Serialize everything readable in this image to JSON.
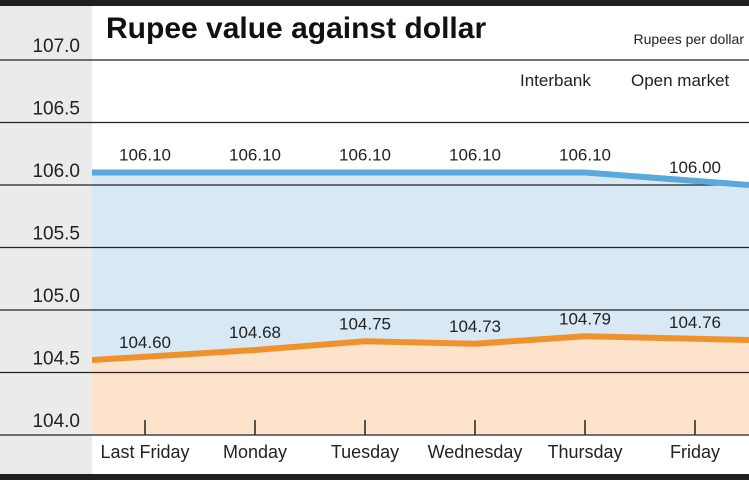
{
  "chart_data": {
    "type": "line",
    "title": "Rupee value against dollar",
    "unit_label": "Rupees per dollar",
    "categories": [
      "Last Friday",
      "Monday",
      "Tuesday",
      "Wednesday",
      "Thursday",
      "Friday"
    ],
    "series": [
      {
        "name": "Interbank",
        "values": [
          104.6,
          104.68,
          104.75,
          104.73,
          104.79,
          104.76
        ],
        "labels": [
          "104.60",
          "104.68",
          "104.75",
          "104.73",
          "104.79",
          "104.76"
        ],
        "color": "#f0922b",
        "fill": "#fde3cc"
      },
      {
        "name": "Open market",
        "values": [
          106.1,
          106.1,
          106.1,
          106.1,
          106.1,
          106.0
        ],
        "labels": [
          "106.10",
          "106.10",
          "106.10",
          "106.10",
          "106.10",
          "106.00"
        ],
        "color": "#5aa8dc",
        "fill": "#d9e8f5"
      }
    ],
    "yticks": [
      "107.0",
      "106.5",
      "106.0",
      "105.5",
      "105.0",
      "104.5",
      "104.0"
    ],
    "ylim": [
      104.0,
      107.0
    ],
    "grid": true,
    "legend": "top-right",
    "colors": {
      "frame": "#1f1f1f",
      "axis_band": "#ebebeb",
      "grid": "#222222"
    }
  }
}
